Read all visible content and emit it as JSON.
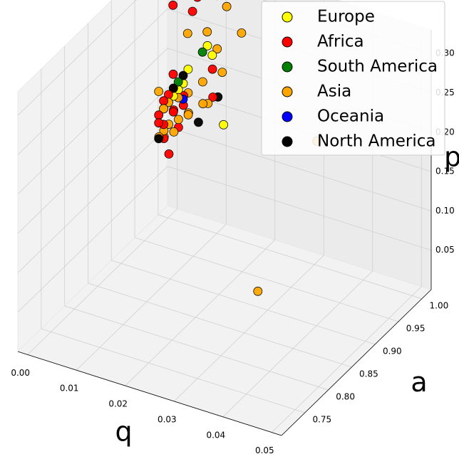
{
  "chart_data": {
    "type": "scatter",
    "projection": "3d",
    "xlabel": "q",
    "ylabel": "a",
    "zlabel": "p",
    "xlim": [
      -0.002,
      0.052
    ],
    "ylim": [
      0.7,
      1.02
    ],
    "zlim": [
      0.0,
      0.33
    ],
    "xticks": [
      "0.00",
      "0.01",
      "0.02",
      "0.03",
      "0.04",
      "0.05"
    ],
    "yticks": [
      "0.75",
      "0.80",
      "0.85",
      "0.90",
      "0.95",
      "1.00"
    ],
    "zticks": [
      "0.05",
      "0.10",
      "0.15",
      "0.20",
      "0.25",
      "0.30"
    ],
    "grid": true,
    "legend_position": "top-right",
    "series": [
      {
        "name": "Europe",
        "color": "#ffff00",
        "points": [
          {
            "x": 0.006,
            "y": 0.97,
            "z": 0.2
          },
          {
            "x": 0.003,
            "y": 0.97,
            "z": 0.17
          },
          {
            "x": 0.004,
            "y": 0.97,
            "z": 0.18
          },
          {
            "x": 0.01,
            "y": 0.98,
            "z": 0.25
          },
          {
            "x": 0.011,
            "y": 0.98,
            "z": 0.24
          },
          {
            "x": 0.007,
            "y": 0.97,
            "z": 0.22
          },
          {
            "x": 0.002,
            "y": 0.97,
            "z": 0.16
          },
          {
            "x": 0.005,
            "y": 0.97,
            "z": 0.19
          },
          {
            "x": 0.02,
            "y": 0.91,
            "z": 0.21
          }
        ]
      },
      {
        "name": "Africa",
        "color": "#ff0000",
        "points": [
          {
            "x": 0.005,
            "y": 0.995,
            "z": 0.4
          },
          {
            "x": 0.007,
            "y": 0.99,
            "z": 0.3
          },
          {
            "x": 0.006,
            "y": 0.99,
            "z": 0.28
          },
          {
            "x": 0.002,
            "y": 0.99,
            "z": 0.28
          },
          {
            "x": 0.003,
            "y": 0.98,
            "z": 0.2
          },
          {
            "x": 0.004,
            "y": 0.97,
            "z": 0.19
          },
          {
            "x": 0.002,
            "y": 0.97,
            "z": 0.17
          },
          {
            "x": 0.001,
            "y": 0.97,
            "z": 0.15
          },
          {
            "x": 0.003,
            "y": 0.97,
            "z": 0.18
          },
          {
            "x": 0.005,
            "y": 0.96,
            "z": 0.17
          },
          {
            "x": 0.004,
            "y": 0.97,
            "z": 0.16
          },
          {
            "x": 0.002,
            "y": 0.97,
            "z": 0.14
          },
          {
            "x": 0.006,
            "y": 0.96,
            "z": 0.15
          },
          {
            "x": 0.007,
            "y": 0.96,
            "z": 0.18
          },
          {
            "x": 0.003,
            "y": 0.96,
            "z": 0.13
          },
          {
            "x": 0.008,
            "y": 0.95,
            "z": 0.2
          },
          {
            "x": 0.012,
            "y": 0.97,
            "z": 0.23
          },
          {
            "x": 0.014,
            "y": 0.95,
            "z": 0.21
          },
          {
            "x": 0.005,
            "y": 0.95,
            "z": 0.12
          },
          {
            "x": 0.001,
            "y": 0.97,
            "z": 0.14
          }
        ]
      },
      {
        "name": "South America",
        "color": "#008000",
        "points": [
          {
            "x": 0.009,
            "y": 0.98,
            "z": 0.24
          },
          {
            "x": 0.005,
            "y": 0.97,
            "z": 0.2
          }
        ]
      },
      {
        "name": "Asia",
        "color": "#ffa500",
        "points": [
          {
            "x": 0.011,
            "y": 0.99,
            "z": 0.31
          },
          {
            "x": 0.013,
            "y": 0.99,
            "z": 0.3
          },
          {
            "x": 0.009,
            "y": 0.99,
            "z": 0.26
          },
          {
            "x": 0.005,
            "y": 0.99,
            "z": 0.25
          },
          {
            "x": 0.017,
            "y": 0.98,
            "z": 0.28
          },
          {
            "x": 0.012,
            "y": 0.98,
            "z": 0.25
          },
          {
            "x": 0.014,
            "y": 0.97,
            "z": 0.23
          },
          {
            "x": 0.01,
            "y": 0.97,
            "z": 0.21
          },
          {
            "x": 0.007,
            "y": 0.97,
            "z": 0.19
          },
          {
            "x": 0.005,
            "y": 0.97,
            "z": 0.18
          },
          {
            "x": 0.003,
            "y": 0.97,
            "z": 0.17
          },
          {
            "x": 0.002,
            "y": 0.97,
            "z": 0.16
          },
          {
            "x": 0.004,
            "y": 0.96,
            "z": 0.15
          },
          {
            "x": 0.006,
            "y": 0.96,
            "z": 0.16
          },
          {
            "x": 0.001,
            "y": 0.97,
            "z": 0.18
          },
          {
            "x": 0.003,
            "y": 0.96,
            "z": 0.14
          },
          {
            "x": 0.008,
            "y": 0.96,
            "z": 0.17
          },
          {
            "x": 0.011,
            "y": 0.96,
            "z": 0.19
          },
          {
            "x": 0.002,
            "y": 0.96,
            "z": 0.13
          },
          {
            "x": 0.004,
            "y": 0.95,
            "z": 0.14
          },
          {
            "x": 0.009,
            "y": 0.95,
            "z": 0.18
          },
          {
            "x": 0.006,
            "y": 0.95,
            "z": 0.15
          },
          {
            "x": 0.013,
            "y": 0.95,
            "z": 0.2
          },
          {
            "x": 0.042,
            "y": 0.88,
            "z": 0.25
          },
          {
            "x": 0.028,
            "y": 0.9,
            "z": 0.02
          }
        ]
      },
      {
        "name": "Oceania",
        "color": "#0000ff",
        "points": [
          {
            "x": 0.006,
            "y": 0.97,
            "z": 0.18
          }
        ]
      },
      {
        "name": "North America",
        "color": "#000000",
        "points": [
          {
            "x": 0.016,
            "y": 0.94,
            "z": 0.22
          },
          {
            "x": 0.012,
            "y": 0.94,
            "z": 0.18
          },
          {
            "x": 0.001,
            "y": 0.97,
            "z": 0.12
          },
          {
            "x": 0.004,
            "y": 0.97,
            "z": 0.19
          },
          {
            "x": 0.006,
            "y": 0.97,
            "z": 0.21
          }
        ]
      }
    ]
  }
}
